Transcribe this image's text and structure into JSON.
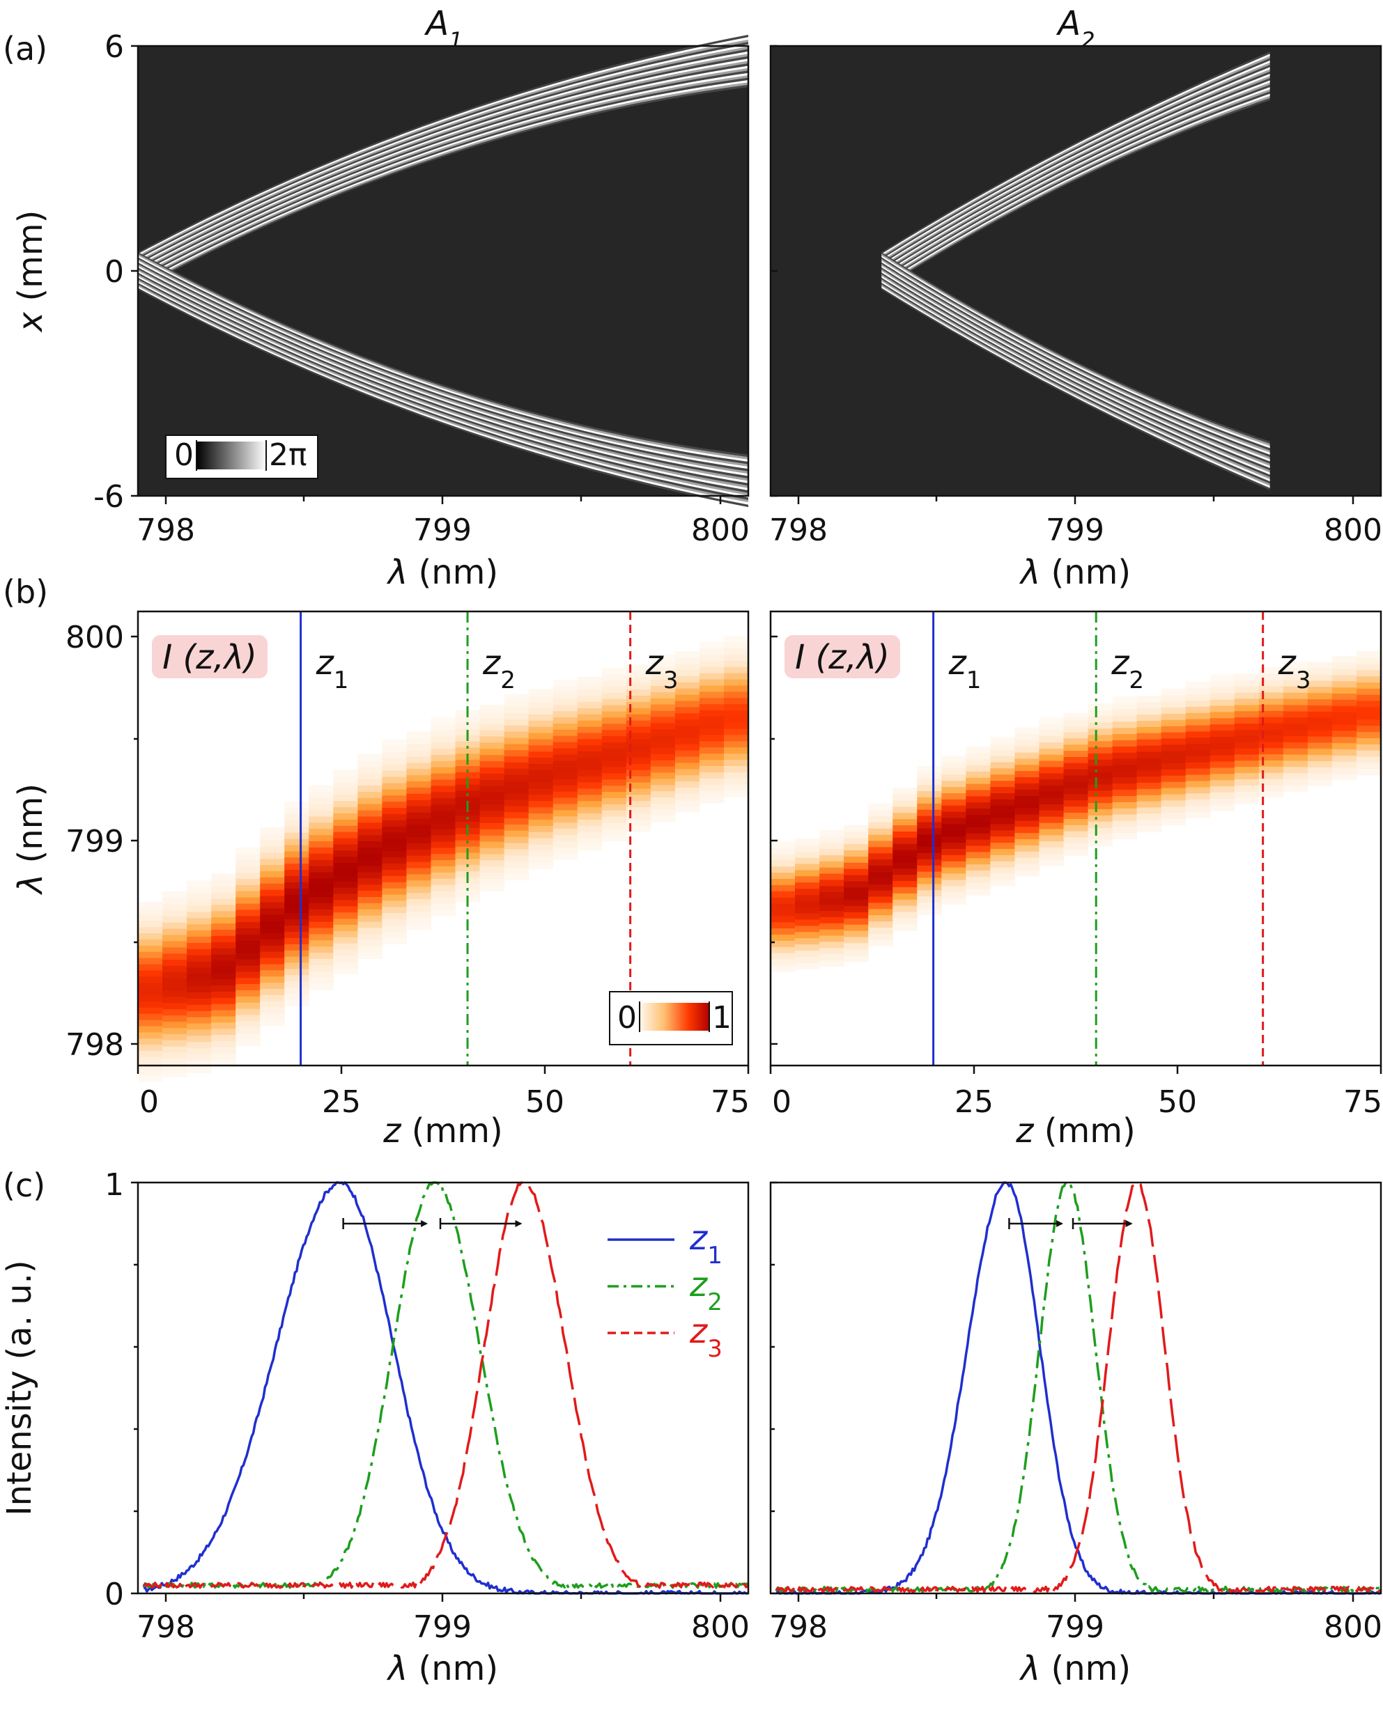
{
  "panel_labels": [
    "(a)",
    "(b)",
    "(c)"
  ],
  "chart_data": [
    {
      "id": "a-left",
      "type": "heatmap",
      "title": "A",
      "title_subscript": "1",
      "xlabel_symbol": "λ",
      "xlabel_unit": "(nm)",
      "ylabel_symbol": "x",
      "ylabel_unit": "(mm)",
      "xlim": [
        797.9,
        800.1
      ],
      "ylim": [
        -6,
        6
      ],
      "xticks": [
        "798",
        "799",
        "800"
      ],
      "xtick_values": [
        798,
        799,
        800
      ],
      "yticks": [
        "6",
        "0",
        "-6"
      ],
      "ytick_values": [
        6,
        0,
        -6
      ],
      "colorbar": {
        "min_label": "0",
        "max_label": "2π",
        "colormap": "black-white"
      },
      "phase_band": {
        "lambda_start": 797.9,
        "lambda_end": 800.1,
        "x_at_start": 0.0,
        "x_at_end": 5.6,
        "x_curvature": 0.6,
        "width_at_start": 1.0,
        "width_at_end": 1.4
      }
    },
    {
      "id": "a-right",
      "type": "heatmap",
      "title": "A",
      "title_subscript": "2",
      "xlabel_symbol": "λ",
      "xlabel_unit": "(nm)",
      "xlim": [
        797.9,
        800.1
      ],
      "ylim": [
        -6,
        6
      ],
      "xticks": [
        "798",
        "799",
        "800"
      ],
      "xtick_values": [
        798,
        799,
        800
      ],
      "phase_band": {
        "lambda_start": 798.3,
        "lambda_end": 799.7,
        "x_at_start": 0.0,
        "x_at_end": 5.2,
        "x_curvature": 0.3,
        "width_at_start": 1.0,
        "width_at_end": 1.3
      }
    },
    {
      "id": "b-left",
      "type": "heatmap",
      "label_box": "I (z,λ)",
      "xlabel_symbol": "z",
      "xlabel_unit": "(mm)",
      "ylabel_symbol": "λ",
      "ylabel_unit": "(nm)",
      "xlim": [
        0,
        75
      ],
      "ylim": [
        797.9,
        800.1
      ],
      "xticks": [
        "0",
        "25",
        "50",
        "75"
      ],
      "xtick_values": [
        0,
        25,
        50,
        75
      ],
      "yticks": [
        "800",
        "799",
        "798"
      ],
      "ytick_values": [
        800,
        799,
        798
      ],
      "markers": [
        {
          "label": "z",
          "sub": "1",
          "z": 20,
          "color": "#1f2fcf",
          "style": "solid"
        },
        {
          "label": "z",
          "sub": "2",
          "z": 40.5,
          "color": "#1e9e1e",
          "style": "dashdot"
        },
        {
          "label": "z",
          "sub": "3",
          "z": 60.5,
          "color": "#e21a1a",
          "style": "dashed"
        }
      ],
      "colorbar": {
        "min_label": "0",
        "max_label": "1",
        "colormap": "white-orange-red"
      },
      "ridge": {
        "z": [
          0,
          10,
          20,
          30,
          40,
          50,
          60,
          70,
          75
        ],
        "lambda": [
          798.25,
          798.35,
          798.7,
          798.95,
          799.15,
          799.3,
          799.42,
          799.55,
          799.6
        ],
        "width": [
          0.42,
          0.44,
          0.46,
          0.46,
          0.44,
          0.42,
          0.4,
          0.38,
          0.38
        ],
        "peak": [
          0.75,
          0.95,
          1.0,
          0.98,
          0.92,
          0.85,
          0.8,
          0.75,
          0.7
        ]
      }
    },
    {
      "id": "b-right",
      "type": "heatmap",
      "label_box": "I (z,λ)",
      "xlabel_symbol": "z",
      "xlabel_unit": "(mm)",
      "xlim": [
        0,
        75
      ],
      "ylim": [
        797.9,
        800.1
      ],
      "xticks": [
        "0",
        "25",
        "50",
        "75"
      ],
      "xtick_values": [
        0,
        25,
        50,
        75
      ],
      "markers": [
        {
          "label": "z",
          "sub": "1",
          "z": 20,
          "color": "#1f2fcf",
          "style": "solid"
        },
        {
          "label": "z",
          "sub": "2",
          "z": 40,
          "color": "#1e9e1e",
          "style": "dashdot"
        },
        {
          "label": "z",
          "sub": "3",
          "z": 60.5,
          "color": "#e21a1a",
          "style": "dashed"
        }
      ],
      "ridge": {
        "z": [
          0,
          10,
          20,
          30,
          40,
          50,
          60,
          70,
          75
        ],
        "lambda": [
          798.65,
          798.72,
          799.0,
          799.15,
          799.3,
          799.4,
          799.5,
          799.58,
          799.62
        ],
        "width": [
          0.3,
          0.32,
          0.34,
          0.34,
          0.33,
          0.32,
          0.31,
          0.3,
          0.3
        ],
        "peak": [
          0.75,
          0.95,
          1.0,
          0.97,
          0.9,
          0.84,
          0.78,
          0.74,
          0.7
        ]
      }
    },
    {
      "id": "c-left",
      "type": "line",
      "ylabel": "Intensity (a. u.)",
      "xlabel_symbol": "λ",
      "xlabel_unit": "(nm)",
      "xlim": [
        797.9,
        800.1
      ],
      "ylim": [
        0,
        1
      ],
      "xticks": [
        "798",
        "799",
        "800"
      ],
      "xtick_values": [
        798,
        799,
        800
      ],
      "yticks": [
        "1",
        "0"
      ],
      "ytick_values": [
        1,
        0
      ],
      "legend": {
        "placement": "top-right",
        "entries": [
          {
            "label": "z",
            "sub": "1",
            "color": "#1f2fcf",
            "style": "solid"
          },
          {
            "label": "z",
            "sub": "2",
            "color": "#1e9e1e",
            "style": "dashdot"
          },
          {
            "label": "z",
            "sub": "3",
            "color": "#e21a1a",
            "style": "dashed"
          }
        ]
      },
      "series": [
        {
          "name": "z1",
          "color": "#1f2fcf",
          "style": "solid",
          "center": 798.63,
          "sigma_left": 0.23,
          "sigma_right": 0.19,
          "amplitude": 1.0,
          "baseline": 0.0,
          "x_start": 797.92,
          "x_end": 800.1
        },
        {
          "name": "z2",
          "color": "#1e9e1e",
          "style": "dashdot",
          "center": 798.97,
          "sigma_left": 0.15,
          "sigma_right": 0.16,
          "amplitude": 1.0,
          "baseline": 0.02,
          "x_start": 797.92,
          "x_end": 800.1
        },
        {
          "name": "z3",
          "color": "#e21a1a",
          "style": "dashed",
          "center": 799.29,
          "sigma_left": 0.14,
          "sigma_right": 0.15,
          "amplitude": 1.0,
          "baseline": 0.02,
          "x_start": 797.92,
          "x_end": 800.1
        }
      ],
      "arrows": [
        {
          "from": 798.64,
          "to": 798.94,
          "y": 0.9
        },
        {
          "from": 798.99,
          "to": 799.28,
          "y": 0.9
        }
      ]
    },
    {
      "id": "c-right",
      "type": "line",
      "xlabel_symbol": "λ",
      "xlabel_unit": "(nm)",
      "xlim": [
        797.9,
        800.1
      ],
      "ylim": [
        0,
        1
      ],
      "xticks": [
        "798",
        "799",
        "800"
      ],
      "xtick_values": [
        798,
        799,
        800
      ],
      "series": [
        {
          "name": "z1",
          "color": "#1f2fcf",
          "style": "solid",
          "center": 798.75,
          "sigma_left": 0.14,
          "sigma_right": 0.12,
          "amplitude": 1.0,
          "baseline": 0.0,
          "x_start": 797.92,
          "x_end": 800.1
        },
        {
          "name": "z2",
          "color": "#1e9e1e",
          "style": "dashdot",
          "center": 798.97,
          "sigma_left": 0.1,
          "sigma_right": 0.1,
          "amplitude": 1.0,
          "baseline": 0.01,
          "x_start": 797.92,
          "x_end": 800.1
        },
        {
          "name": "z3",
          "color": "#e21a1a",
          "style": "dashed",
          "center": 799.22,
          "sigma_left": 0.1,
          "sigma_right": 0.1,
          "amplitude": 1.0,
          "baseline": 0.01,
          "x_start": 797.92,
          "x_end": 800.1
        }
      ],
      "arrows": [
        {
          "from": 798.76,
          "to": 798.95,
          "y": 0.9
        },
        {
          "from": 798.99,
          "to": 799.2,
          "y": 0.9
        }
      ]
    }
  ]
}
